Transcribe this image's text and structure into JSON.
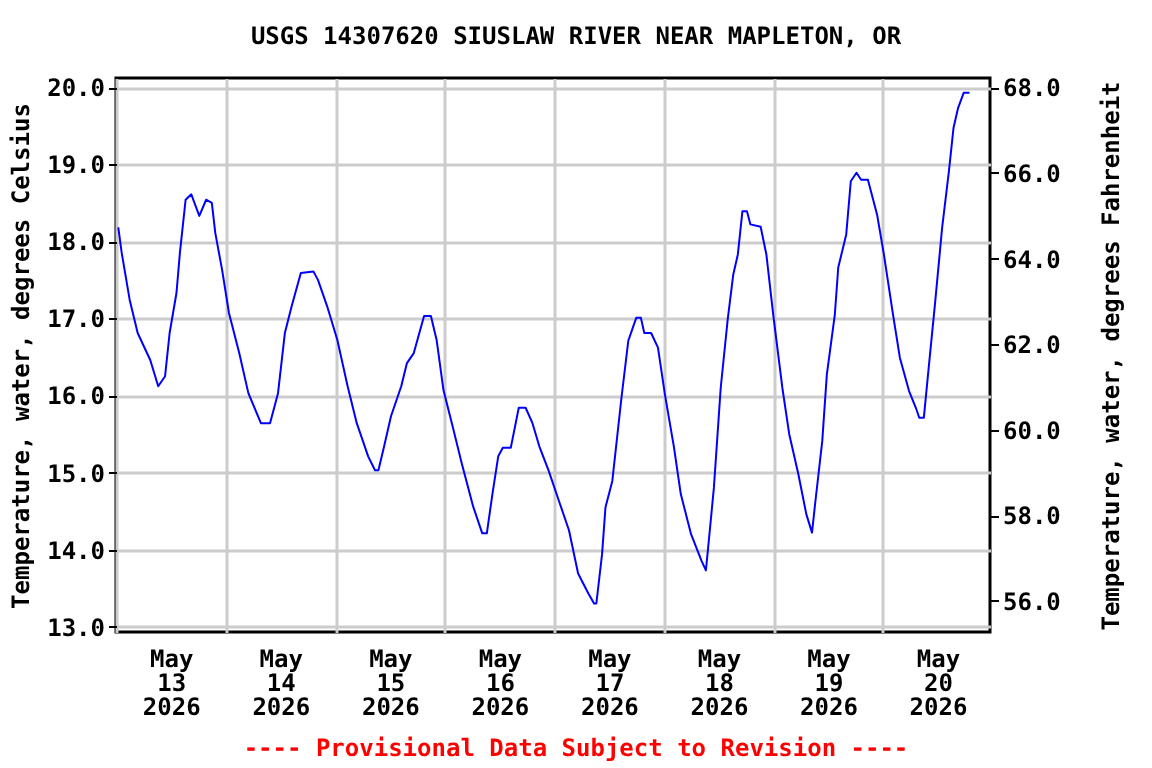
{
  "chart_data": {
    "type": "line",
    "title": "USGS 14307620 SIUSLAW RIVER NEAR MAPLETON, OR",
    "ylabel": "Temperature, water, degrees Celsius",
    "y2label": "Temperature, water, degrees Fahrenheit",
    "annotations": [
      "---- Provisional Data Subject to Revision ----"
    ],
    "xlim": [
      "2026-05-13T00:00",
      "2026-05-20T23:30"
    ],
    "xticks": [
      {
        "value": "2026-05-13T00:00",
        "label": null
      },
      {
        "value": "2026-05-13T12:00",
        "label": "May\n13\n2026"
      },
      {
        "value": "2026-05-14T00:00",
        "label": null
      },
      {
        "value": "2026-05-14T12:00",
        "label": "May\n14\n2026"
      },
      {
        "value": "2026-05-15T00:00",
        "label": null
      },
      {
        "value": "2026-05-15T12:00",
        "label": "May\n15\n2026"
      },
      {
        "value": "2026-05-16T00:00",
        "label": null
      },
      {
        "value": "2026-05-16T12:00",
        "label": "May\n16\n2026"
      },
      {
        "value": "2026-05-17T00:00",
        "label": null
      },
      {
        "value": "2026-05-17T12:00",
        "label": "May\n17\n2026"
      },
      {
        "value": "2026-05-18T00:00",
        "label": null
      },
      {
        "value": "2026-05-18T12:00",
        "label": "May\n18\n2026"
      },
      {
        "value": "2026-05-19T00:00",
        "label": null
      },
      {
        "value": "2026-05-19T12:00",
        "label": "May\n19\n2026"
      },
      {
        "value": "2026-05-20T00:00",
        "label": null
      },
      {
        "value": "2026-05-20T12:00",
        "label": "May\n20\n2026"
      }
    ],
    "ylim": [
      12.93,
      20.12
    ],
    "yticks": [
      {
        "value": 13,
        "label": "13.0"
      },
      {
        "value": 14,
        "label": "14.0"
      },
      {
        "value": 15,
        "label": "15.0"
      },
      {
        "value": 16,
        "label": "16.0"
      },
      {
        "value": 17,
        "label": "17.0"
      },
      {
        "value": 18,
        "label": "18.0"
      },
      {
        "value": 19,
        "label": "19.0"
      },
      {
        "value": 20,
        "label": "20.0"
      }
    ],
    "y2lim": [
      55.27,
      68.22
    ],
    "y2ticks": [
      {
        "value": 56,
        "label": "56.0"
      },
      {
        "value": 58,
        "label": "58.0"
      },
      {
        "value": 60,
        "label": "60.0"
      },
      {
        "value": 62,
        "label": "62.0"
      },
      {
        "value": 64,
        "label": "64.0"
      },
      {
        "value": 66,
        "label": "66.0"
      },
      {
        "value": 68,
        "label": "68.0"
      }
    ],
    "grid": true,
    "series": [
      {
        "color": "#0000ff",
        "x": [
          "2026-05-13T00:30",
          "2026-05-13T01:15",
          "2026-05-13T03:00",
          "2026-05-13T04:45",
          "2026-05-13T07:30",
          "2026-05-13T09:15",
          "2026-05-13T10:45",
          "2026-05-13T11:45",
          "2026-05-13T13:15",
          "2026-05-13T14:00",
          "2026-05-13T15:15",
          "2026-05-13T16:30",
          "2026-05-13T18:15",
          "2026-05-13T19:45",
          "2026-05-13T21:00",
          "2026-05-13T21:45",
          "2026-05-13T23:15",
          "2026-05-14T00:45",
          "2026-05-14T03:00",
          "2026-05-14T05:00",
          "2026-05-14T07:45",
          "2026-05-14T09:45",
          "2026-05-14T11:30",
          "2026-05-14T13:00",
          "2026-05-14T14:30",
          "2026-05-14T16:30",
          "2026-05-14T19:15",
          "2026-05-14T20:15",
          "2026-05-14T22:15",
          "2026-05-15T00:30",
          "2026-05-15T02:45",
          "2026-05-15T04:45",
          "2026-05-15T07:15",
          "2026-05-15T08:45",
          "2026-05-15T09:30",
          "2026-05-15T10:45",
          "2026-05-15T12:15",
          "2026-05-15T14:30",
          "2026-05-15T15:45",
          "2026-05-15T17:15",
          "2026-05-15T19:30",
          "2026-05-15T21:00",
          "2026-05-15T22:15",
          "2026-05-15T23:45",
          "2026-05-16T01:45",
          "2026-05-16T03:45",
          "2026-05-16T06:15",
          "2026-05-16T08:15",
          "2026-05-16T09:15",
          "2026-05-16T10:30",
          "2026-05-16T11:45",
          "2026-05-16T12:45",
          "2026-05-16T14:30",
          "2026-05-16T16:15",
          "2026-05-16T17:45",
          "2026-05-16T19:15",
          "2026-05-16T20:45",
          "2026-05-16T22:45",
          "2026-05-17T01:00",
          "2026-05-17T03:15",
          "2026-05-17T05:15",
          "2026-05-17T07:30",
          "2026-05-17T08:45",
          "2026-05-17T09:15",
          "2026-05-17T10:30",
          "2026-05-17T11:15",
          "2026-05-17T12:45",
          "2026-05-17T14:45",
          "2026-05-17T16:15",
          "2026-05-17T18:00",
          "2026-05-17T19:00",
          "2026-05-17T19:45",
          "2026-05-17T21:15",
          "2026-05-17T22:45",
          "2026-05-18T00:15",
          "2026-05-18T02:15",
          "2026-05-18T03:45",
          "2026-05-18T06:00",
          "2026-05-18T08:15",
          "2026-05-18T09:15",
          "2026-05-18T09:45",
          "2026-05-18T11:00",
          "2026-05-18T12:30",
          "2026-05-18T14:00",
          "2026-05-18T15:15",
          "2026-05-18T16:15",
          "2026-05-18T17:15",
          "2026-05-18T18:15",
          "2026-05-18T19:00",
          "2026-05-18T21:15",
          "2026-05-18T22:30",
          "2026-05-19T00:00",
          "2026-05-19T02:00",
          "2026-05-19T03:30",
          "2026-05-19T05:30",
          "2026-05-19T07:15",
          "2026-05-19T08:30",
          "2026-05-19T09:15",
          "2026-05-19T10:45",
          "2026-05-19T11:45",
          "2026-05-19T13:30",
          "2026-05-19T14:15",
          "2026-05-19T16:00",
          "2026-05-19T17:00",
          "2026-05-19T18:15",
          "2026-05-19T19:15",
          "2026-05-19T20:45",
          "2026-05-19T22:45",
          "2026-05-20T00:15",
          "2026-05-20T02:15",
          "2026-05-20T03:45",
          "2026-05-20T05:45",
          "2026-05-20T07:15",
          "2026-05-20T08:00",
          "2026-05-20T09:00",
          "2026-05-20T10:00",
          "2026-05-20T11:30",
          "2026-05-20T13:00",
          "2026-05-20T14:30",
          "2026-05-20T15:30",
          "2026-05-20T16:30",
          "2026-05-20T17:45",
          "2026-05-20T19:00"
        ],
        "values": [
          18.18,
          17.85,
          17.24,
          16.81,
          16.46,
          16.12,
          16.25,
          16.81,
          17.33,
          17.85,
          18.54,
          18.61,
          18.33,
          18.54,
          18.5,
          18.11,
          17.63,
          17.07,
          16.55,
          16.03,
          15.64,
          15.64,
          16.03,
          16.81,
          17.16,
          17.59,
          17.61,
          17.5,
          17.16,
          16.72,
          16.12,
          15.64,
          15.21,
          15.03,
          15.03,
          15.34,
          15.73,
          16.12,
          16.42,
          16.55,
          17.03,
          17.03,
          16.72,
          16.07,
          15.6,
          15.12,
          14.56,
          14.21,
          14.21,
          14.73,
          15.21,
          15.32,
          15.32,
          15.84,
          15.84,
          15.64,
          15.34,
          15.03,
          14.64,
          14.25,
          13.69,
          13.43,
          13.3,
          13.3,
          13.94,
          14.55,
          14.89,
          15.97,
          16.71,
          17.01,
          17.01,
          16.81,
          16.81,
          16.62,
          16.02,
          15.33,
          14.72,
          14.2,
          13.86,
          13.73,
          14.03,
          14.8,
          16.1,
          16.97,
          17.57,
          17.83,
          18.39,
          18.39,
          18.22,
          18.19,
          17.83,
          17.05,
          16.1,
          15.5,
          14.98,
          14.46,
          14.22,
          14.63,
          15.41,
          16.27,
          17.05,
          17.66,
          18.09,
          18.78,
          18.89,
          18.8,
          18.8,
          18.35,
          17.83,
          17.05,
          16.49,
          16.06,
          15.84,
          15.71,
          15.71,
          16.32,
          17.22,
          18.17,
          18.91,
          19.47,
          19.73,
          19.93,
          19.93
        ]
      }
    ]
  }
}
